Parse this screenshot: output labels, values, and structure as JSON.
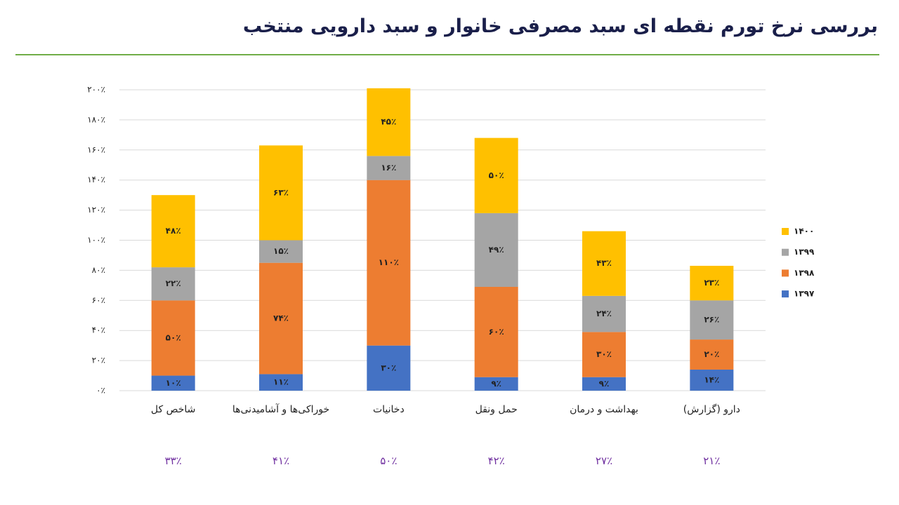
{
  "chart_data": {
    "type": "stacked_bar",
    "title": "بررسی نرخ تورم نقطه ای سبد مصرفی خانوار و سبد دارویی منتخب",
    "categories": [
      "شاخص کل",
      "خوراکی‌ها و آشامیدنی‌ها",
      "دخانیات",
      "حمل ونقل",
      "بهداشت و درمان",
      "دارو (گزارش)"
    ],
    "series": [
      {
        "name": "۱۳۹۷",
        "color": "#4472c4",
        "values": [
          10,
          11,
          30,
          9,
          9,
          14
        ],
        "value_labels": [
          "۱۰٪",
          "۱۱٪",
          "۳۰٪",
          "۹٪",
          "۹٪",
          "۱۴٪"
        ]
      },
      {
        "name": "۱۳۹۸",
        "color": "#ed7d31",
        "values": [
          50,
          74,
          110,
          60,
          30,
          20
        ],
        "value_labels": [
          "۵۰٪",
          "۷۴٪",
          "۱۱۰٪",
          "۶۰٪",
          "۳۰٪",
          "۲۰٪"
        ]
      },
      {
        "name": "۱۳۹۹",
        "color": "#a5a5a5",
        "values": [
          22,
          15,
          16,
          49,
          24,
          26
        ],
        "value_labels": [
          "۲۲٪",
          "۱۵٪",
          "۱۶٪",
          "۴۹٪",
          "۲۴٪",
          "۲۶٪"
        ]
      },
      {
        "name": "۱۴۰۰",
        "color": "#ffc000",
        "values": [
          48,
          63,
          45,
          50,
          43,
          23
        ],
        "value_labels": [
          "۴۸٪",
          "۶۳٪",
          "۴۵٪",
          "۵۰٪",
          "۴۳٪",
          "۲۳٪"
        ]
      }
    ],
    "annotations": [
      "۳۳٪",
      "۴۱٪",
      "۵۰٪",
      "۴۲٪",
      "۲۷٪",
      "۲۱٪"
    ],
    "ylim": [
      0,
      200
    ],
    "yticks": [
      {
        "value": 0,
        "label": "۰٪"
      },
      {
        "value": 20,
        "label": "۲۰٪"
      },
      {
        "value": 40,
        "label": "۴۰٪"
      },
      {
        "value": 60,
        "label": "۶۰٪"
      },
      {
        "value": 80,
        "label": "۸۰٪"
      },
      {
        "value": 100,
        "label": "۱۰۰٪"
      },
      {
        "value": 120,
        "label": "۱۲۰٪"
      },
      {
        "value": 140,
        "label": "۱۴۰٪"
      },
      {
        "value": 160,
        "label": "۱۶۰٪"
      },
      {
        "value": 180,
        "label": "۱۸۰٪"
      },
      {
        "value": 200,
        "label": "۲۰۰٪"
      }
    ],
    "grid": true,
    "legend": "right"
  }
}
